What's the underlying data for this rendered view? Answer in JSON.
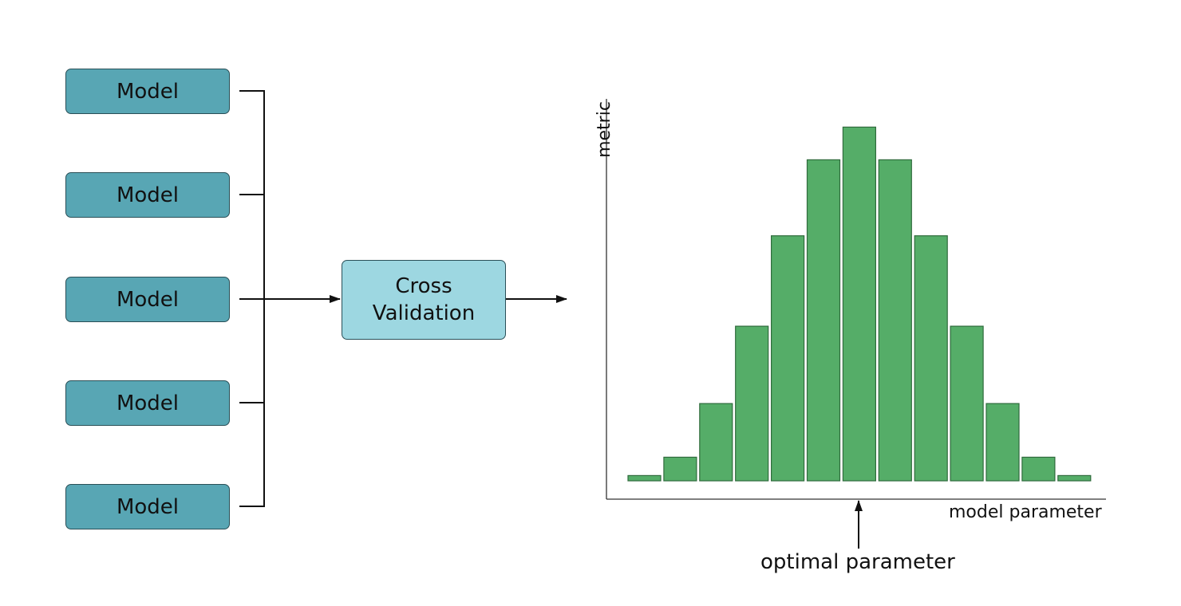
{
  "models": [
    {
      "label": "Model"
    },
    {
      "label": "Model"
    },
    {
      "label": "Model"
    },
    {
      "label": "Model"
    },
    {
      "label": "Model"
    }
  ],
  "cross_validation": {
    "line1": "Cross",
    "line2": "Validation"
  },
  "chart_data": {
    "type": "bar",
    "xlabel": "model parameter",
    "ylabel": "metric",
    "annotation": "optimal parameter",
    "values": [
      0.4,
      1.8,
      5.9,
      11.8,
      18.7,
      24.5,
      27.0,
      24.5,
      18.7,
      11.8,
      5.9,
      1.8,
      0.4
    ],
    "ylim": [
      0,
      28.3
    ],
    "colors": {
      "bar_fill": "#55ad68",
      "bar_stroke": "#2f6b3c"
    }
  },
  "colors": {
    "model_box": "#58a6b4",
    "cv_box": "#9dd7e1",
    "line": "#111111"
  }
}
